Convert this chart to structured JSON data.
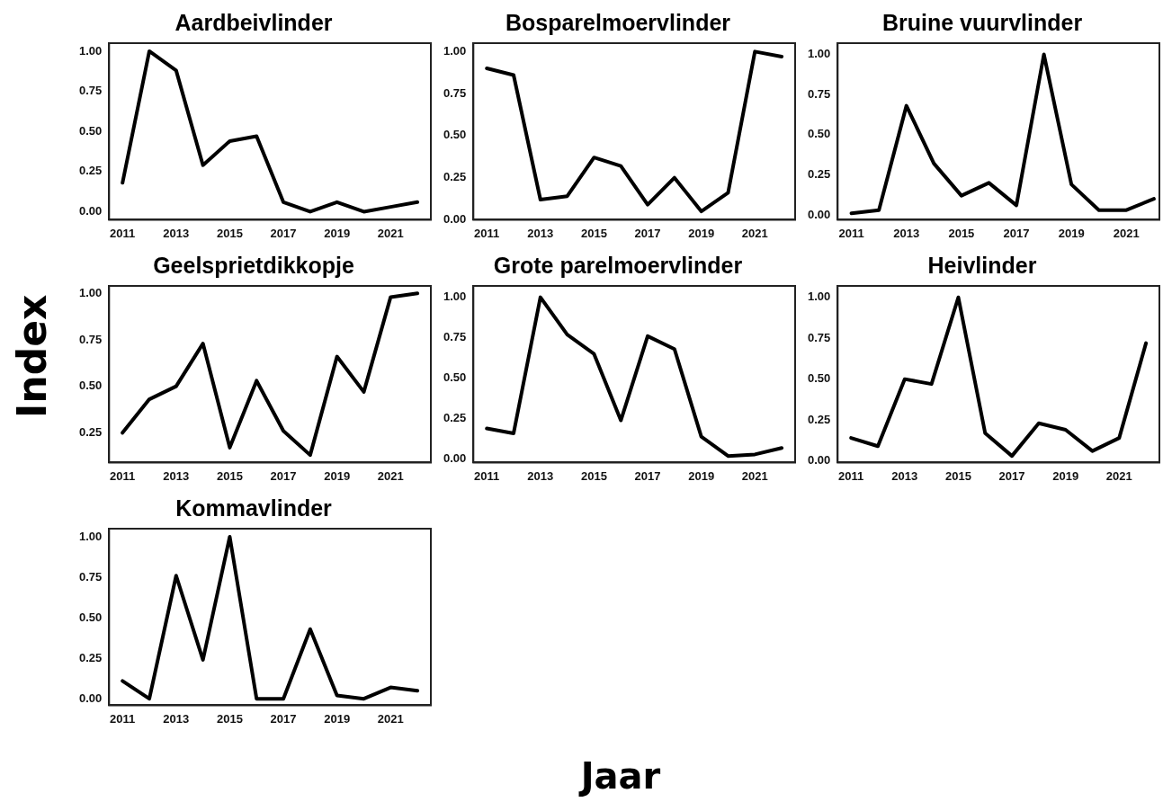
{
  "chart_data": [
    {
      "type": "line",
      "title": "Aardbeivlinder",
      "ylabel": "Index",
      "x": [
        2011,
        2012,
        2013,
        2014,
        2015,
        2016,
        2017,
        2018,
        2019,
        2020,
        2021,
        2022
      ],
      "series": [
        {
          "color": "#000000",
          "values": [
            0.18,
            1.0,
            0.88,
            0.29,
            0.44,
            0.47,
            0.06,
            0.0,
            0.06,
            0.0,
            0.03,
            0.06
          ]
        }
      ],
      "xlim": [
        2010.5,
        2022.5
      ],
      "xticks": [
        2011,
        2013,
        2015,
        2017,
        2019,
        2021
      ],
      "ylim": [
        -0.05,
        1.05
      ],
      "yticks": [
        {
          "value": 0,
          "label": "0.00"
        },
        {
          "value": 0.25,
          "label": "0.25"
        },
        {
          "value": 0.5,
          "label": "0.50"
        },
        {
          "value": 0.75,
          "label": "0.75"
        },
        {
          "value": 1,
          "label": "1.00"
        }
      ],
      "grid": false,
      "legend": false,
      "marker": "none",
      "line_style": "solid"
    },
    {
      "type": "line",
      "title": "Bosparelmoervlinder",
      "x": [
        2011,
        2012,
        2013,
        2014,
        2015,
        2016,
        2017,
        2018,
        2019,
        2020,
        2021,
        2022
      ],
      "series": [
        {
          "color": "#000000",
          "values": [
            0.9,
            0.86,
            0.12,
            0.14,
            0.37,
            0.32,
            0.09,
            0.25,
            0.05,
            0.16,
            1.0,
            0.97
          ]
        }
      ],
      "xlim": [
        2010.5,
        2022.5
      ],
      "xticks": [
        2011,
        2013,
        2015,
        2017,
        2019,
        2021
      ],
      "ylim": [
        0,
        1.05
      ],
      "yticks": [
        {
          "value": 0,
          "label": "0.00"
        },
        {
          "value": 0.25,
          "label": "0.25"
        },
        {
          "value": 0.5,
          "label": "0.50"
        },
        {
          "value": 0.75,
          "label": "0.75"
        },
        {
          "value": 1,
          "label": "1.00"
        }
      ],
      "grid": false,
      "legend": false,
      "marker": "none",
      "line_style": "solid"
    },
    {
      "type": "line",
      "title": "Bruine vuurvlinder",
      "x": [
        2011,
        2012,
        2013,
        2014,
        2015,
        2016,
        2017,
        2018,
        2019,
        2020,
        2021,
        2022
      ],
      "series": [
        {
          "color": "#000000",
          "values": [
            0.01,
            0.03,
            0.68,
            0.32,
            0.12,
            0.2,
            0.06,
            1.0,
            0.19,
            0.03,
            0.03,
            0.1
          ]
        }
      ],
      "xlim": [
        2010.5,
        2022.2
      ],
      "xticks": [
        2011,
        2013,
        2015,
        2017,
        2019,
        2021
      ],
      "ylim": [
        -0.03,
        1.07
      ],
      "yticks": [
        {
          "value": 0,
          "label": "0.00"
        },
        {
          "value": 0.25,
          "label": "0.25"
        },
        {
          "value": 0.5,
          "label": "0.50"
        },
        {
          "value": 0.75,
          "label": "0.75"
        },
        {
          "value": 1,
          "label": "1.00"
        }
      ],
      "grid": false,
      "legend": false,
      "marker": "none",
      "line_style": "solid"
    },
    {
      "type": "line",
      "title": "Geelsprietdikkopje",
      "x": [
        2011,
        2012,
        2013,
        2014,
        2015,
        2016,
        2017,
        2018,
        2019,
        2020,
        2021,
        2022
      ],
      "series": [
        {
          "color": "#000000",
          "values": [
            0.25,
            0.43,
            0.5,
            0.73,
            0.17,
            0.53,
            0.26,
            0.13,
            0.66,
            0.47,
            0.98,
            1.0
          ]
        }
      ],
      "xlim": [
        2010.5,
        2022.5
      ],
      "xticks": [
        2011,
        2013,
        2015,
        2017,
        2019,
        2021
      ],
      "ylim": [
        0.09,
        1.04
      ],
      "yticks": [
        {
          "value": 0.25,
          "label": "0.25"
        },
        {
          "value": 0.5,
          "label": "0.50"
        },
        {
          "value": 0.75,
          "label": "0.75"
        },
        {
          "value": 1,
          "label": "1.00"
        }
      ],
      "grid": false,
      "legend": false,
      "marker": "none",
      "line_style": "solid"
    },
    {
      "type": "line",
      "title": "Grote parelmoervlinder",
      "x": [
        2011,
        2012,
        2013,
        2014,
        2015,
        2016,
        2017,
        2018,
        2019,
        2020,
        2021,
        2022
      ],
      "series": [
        {
          "color": "#000000",
          "values": [
            0.19,
            0.16,
            1.0,
            0.77,
            0.65,
            0.24,
            0.76,
            0.68,
            0.14,
            0.02,
            0.03,
            0.07
          ]
        }
      ],
      "xlim": [
        2010.5,
        2022.5
      ],
      "xticks": [
        2011,
        2013,
        2015,
        2017,
        2019,
        2021
      ],
      "ylim": [
        -0.02,
        1.07
      ],
      "yticks": [
        {
          "value": 0,
          "label": "0.00"
        },
        {
          "value": 0.25,
          "label": "0.25"
        },
        {
          "value": 0.5,
          "label": "0.50"
        },
        {
          "value": 0.75,
          "label": "0.75"
        },
        {
          "value": 1,
          "label": "1.00"
        }
      ],
      "grid": false,
      "legend": false,
      "marker": "none",
      "line_style": "solid"
    },
    {
      "type": "line",
      "title": "Heivlinder",
      "x": [
        2011,
        2012,
        2013,
        2014,
        2015,
        2016,
        2017,
        2018,
        2019,
        2020,
        2021,
        2022
      ],
      "series": [
        {
          "color": "#000000",
          "values": [
            0.14,
            0.09,
            0.5,
            0.47,
            1.0,
            0.17,
            0.03,
            0.23,
            0.19,
            0.06,
            0.14,
            0.72
          ]
        }
      ],
      "xlim": [
        2010.5,
        2022.5
      ],
      "xticks": [
        2011,
        2013,
        2015,
        2017,
        2019,
        2021
      ],
      "ylim": [
        -0.01,
        1.07
      ],
      "yticks": [
        {
          "value": 0,
          "label": "0.00"
        },
        {
          "value": 0.25,
          "label": "0.25"
        },
        {
          "value": 0.5,
          "label": "0.50"
        },
        {
          "value": 0.75,
          "label": "0.75"
        },
        {
          "value": 1,
          "label": "1.00"
        }
      ],
      "grid": false,
      "legend": false,
      "marker": "none",
      "line_style": "solid"
    },
    {
      "type": "line",
      "title": "Kommavlinder",
      "xlabel": "Jaar",
      "x": [
        2011,
        2012,
        2013,
        2014,
        2015,
        2016,
        2017,
        2018,
        2019,
        2020,
        2021,
        2022
      ],
      "series": [
        {
          "color": "#000000",
          "values": [
            0.11,
            0.0,
            0.76,
            0.24,
            1.0,
            0.0,
            0.0,
            0.43,
            0.02,
            0.0,
            0.07,
            0.05
          ]
        }
      ],
      "xlim": [
        2010.5,
        2022.5
      ],
      "xticks": [
        2011,
        2013,
        2015,
        2017,
        2019,
        2021
      ],
      "ylim": [
        -0.04,
        1.05
      ],
      "yticks": [
        {
          "value": 0,
          "label": "0.00"
        },
        {
          "value": 0.25,
          "label": "0.25"
        },
        {
          "value": 0.5,
          "label": "0.50"
        },
        {
          "value": 0.75,
          "label": "0.75"
        },
        {
          "value": 1,
          "label": "1.00"
        }
      ],
      "grid": false,
      "legend": false,
      "marker": "none",
      "line_style": "solid"
    }
  ]
}
